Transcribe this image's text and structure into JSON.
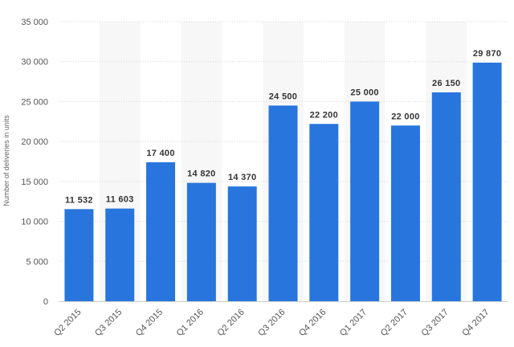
{
  "chart_data": {
    "type": "bar",
    "title": "",
    "xlabel": "",
    "ylabel": "Number of deliveries in units",
    "ylim": [
      0,
      35000
    ],
    "yticks": [
      0,
      5000,
      10000,
      15000,
      20000,
      25000,
      30000,
      35000
    ],
    "ytick_labels": [
      "0",
      "5 000",
      "10 000",
      "15 000",
      "20 000",
      "25 000",
      "30 000",
      "35 000"
    ],
    "grid": true,
    "categories": [
      "Q2 2015",
      "Q3 2015",
      "Q4 2015",
      "Q1 2016",
      "Q2 2016",
      "Q3 2016",
      "Q4 2016",
      "Q1 2017",
      "Q2 2017",
      "Q3 2017",
      "Q4 2017"
    ],
    "values": [
      11532,
      11603,
      17400,
      14820,
      14370,
      24500,
      22200,
      25000,
      22000,
      26150,
      29870
    ],
    "data_labels": [
      "11 532",
      "11 603",
      "17 400",
      "14 820",
      "14 370",
      "24 500",
      "22 200",
      "25 000",
      "22 000",
      "26 150",
      "29 870"
    ],
    "bar_color": "#2876dd",
    "band_color": "#f7f7f7",
    "grid_color": "#d4d4d4"
  }
}
